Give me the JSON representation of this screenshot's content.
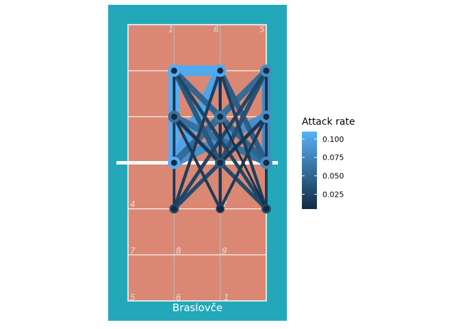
{
  "chart_data": {
    "type": "network",
    "team_label": "Braslovče",
    "zone_labels_far_half": [
      "1",
      "6",
      "5",
      "8",
      "7",
      "4"
    ],
    "zone_labels_near_half": [
      "4",
      "3",
      "2",
      "7",
      "8",
      "9",
      "5",
      "6",
      "1"
    ],
    "legend": {
      "title": "Attack rate",
      "ticks": [
        0.025,
        0.05,
        0.075,
        0.1
      ],
      "tick_labels": [
        "0.025",
        "0.050",
        "0.075",
        "0.100"
      ],
      "range": [
        0.005,
        0.11
      ],
      "low_color": "#132B43",
      "high_color": "#56B1F7"
    },
    "court_x_range": [
      0.5,
      3.5
    ],
    "court_y_range": [
      0.5,
      6.5
    ],
    "edges": [
      {
        "from": [
          1.5,
          5.5
        ],
        "to": [
          1.5,
          3.5
        ],
        "rate": 0.108
      },
      {
        "from": [
          1.5,
          5.5
        ],
        "to": [
          2.5,
          5.5
        ],
        "rate": 0.104
      },
      {
        "from": [
          2.5,
          5.5
        ],
        "to": [
          1.5,
          3.5
        ],
        "rate": 0.1
      },
      {
        "from": [
          1.5,
          3.5
        ],
        "to": [
          3.5,
          4.5
        ],
        "rate": 0.085
      },
      {
        "from": [
          3.5,
          5.5
        ],
        "to": [
          3.5,
          3.5
        ],
        "rate": 0.08
      },
      {
        "from": [
          1.5,
          4.5
        ],
        "to": [
          3.5,
          3.5
        ],
        "rate": 0.06
      },
      {
        "from": [
          2.5,
          4.5
        ],
        "to": [
          1.5,
          3.5
        ],
        "rate": 0.065
      },
      {
        "from": [
          3.5,
          5.5
        ],
        "to": [
          1.5,
          3.5
        ],
        "rate": 0.055
      },
      {
        "from": [
          1.5,
          5.5
        ],
        "to": [
          3.5,
          3.5
        ],
        "rate": 0.05
      },
      {
        "from": [
          2.5,
          5.5
        ],
        "to": [
          3.5,
          3.5
        ],
        "rate": 0.045
      },
      {
        "from": [
          1.5,
          5.5
        ],
        "to": [
          2.5,
          3.5
        ],
        "rate": 0.04
      },
      {
        "from": [
          3.5,
          5.5
        ],
        "to": [
          2.5,
          3.5
        ],
        "rate": 0.035
      },
      {
        "from": [
          1.5,
          4.5
        ],
        "to": [
          3.5,
          2.5
        ],
        "rate": 0.03
      },
      {
        "from": [
          3.5,
          4.5
        ],
        "to": [
          1.5,
          2.5
        ],
        "rate": 0.03
      },
      {
        "from": [
          1.5,
          5.5
        ],
        "to": [
          3.5,
          2.5
        ],
        "rate": 0.025
      },
      {
        "from": [
          3.5,
          5.5
        ],
        "to": [
          1.5,
          2.5
        ],
        "rate": 0.025
      },
      {
        "from": [
          2.5,
          5.5
        ],
        "to": [
          2.5,
          2.5
        ],
        "rate": 0.02
      },
      {
        "from": [
          2.5,
          5.5
        ],
        "to": [
          1.5,
          2.5
        ],
        "rate": 0.02
      },
      {
        "from": [
          2.5,
          5.5
        ],
        "to": [
          3.5,
          2.5
        ],
        "rate": 0.02
      },
      {
        "from": [
          1.5,
          4.5
        ],
        "to": [
          2.5,
          2.5
        ],
        "rate": 0.018
      },
      {
        "from": [
          3.5,
          4.5
        ],
        "to": [
          2.5,
          2.5
        ],
        "rate": 0.018
      },
      {
        "from": [
          1.5,
          5.5
        ],
        "to": [
          1.5,
          2.5
        ],
        "rate": 0.015
      },
      {
        "from": [
          3.5,
          5.5
        ],
        "to": [
          3.5,
          2.5
        ],
        "rate": 0.015
      },
      {
        "from": [
          2.5,
          4.5
        ],
        "to": [
          2.5,
          2.5
        ],
        "rate": 0.015
      },
      {
        "from": [
          1.5,
          4.5
        ],
        "to": [
          2.5,
          3.5
        ],
        "rate": 0.012
      },
      {
        "from": [
          3.5,
          4.5
        ],
        "to": [
          2.5,
          3.5
        ],
        "rate": 0.012
      },
      {
        "from": [
          1.5,
          5.5
        ],
        "to": [
          1.5,
          4.5
        ],
        "rate": 0.01
      },
      {
        "from": [
          2.5,
          5.5
        ],
        "to": [
          2.5,
          4.5
        ],
        "rate": 0.01
      },
      {
        "from": [
          3.5,
          5.5
        ],
        "to": [
          3.5,
          4.5
        ],
        "rate": 0.01
      },
      {
        "from": [
          2.5,
          4.5
        ],
        "to": [
          3.5,
          2.5
        ],
        "rate": 0.01
      }
    ]
  }
}
